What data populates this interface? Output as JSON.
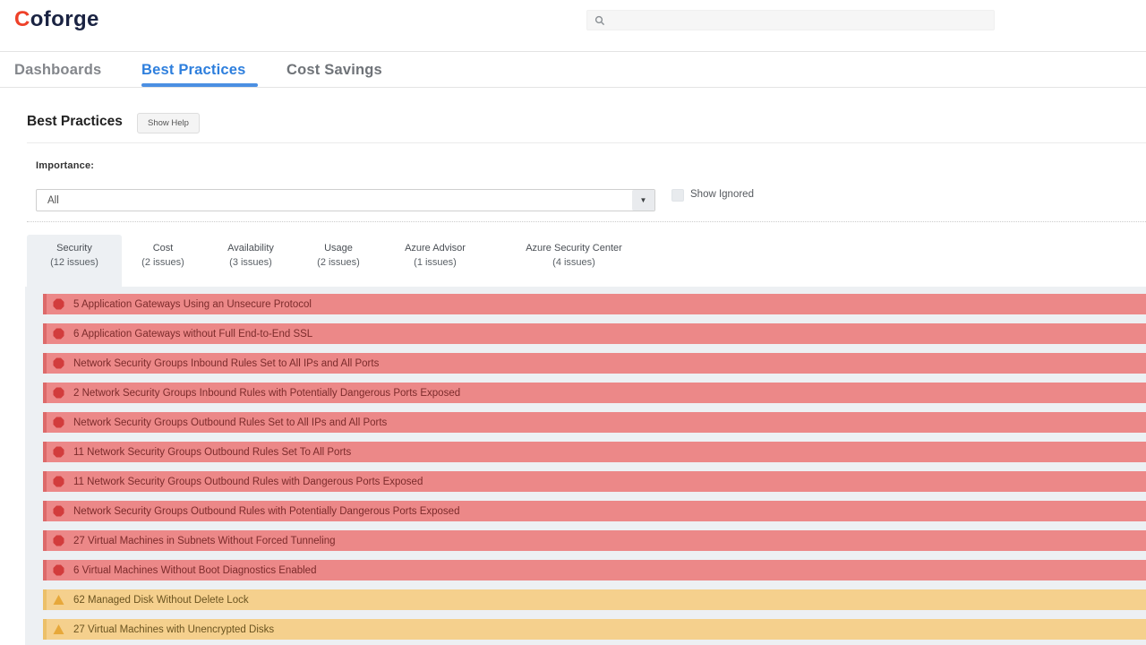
{
  "brand": {
    "logo_prefix": "C",
    "logo_rest": "oforge"
  },
  "nav": {
    "dashboards": "Dashboards",
    "best_practices": "Best Practices",
    "cost_savings": "Cost Savings"
  },
  "page": {
    "title": "Best Practices",
    "show_help": "Show Help",
    "importance_label": "Importance:",
    "importance_value": "All",
    "show_ignored": "Show Ignored"
  },
  "tabs": [
    {
      "label": "Security",
      "count": "(12 issues)",
      "active": true
    },
    {
      "label": "Cost",
      "count": "(2 issues)",
      "active": false
    },
    {
      "label": "Availability",
      "count": "(3 issues)",
      "active": false
    },
    {
      "label": "Usage",
      "count": "(2 issues)",
      "active": false
    },
    {
      "label": "Azure Advisor",
      "count": "(1 issues)",
      "active": false
    },
    {
      "label": "Azure Security Center",
      "count": "(4 issues)",
      "active": false
    }
  ],
  "issues": [
    {
      "severity": "critical",
      "text": "5 Application Gateways Using an Unsecure Protocol"
    },
    {
      "severity": "critical",
      "text": "6 Application Gateways without Full End-to-End SSL"
    },
    {
      "severity": "critical",
      "text": "Network Security Groups Inbound Rules Set to All IPs and All Ports"
    },
    {
      "severity": "critical",
      "text": "2 Network Security Groups Inbound Rules with Potentially Dangerous Ports Exposed"
    },
    {
      "severity": "critical",
      "text": "Network Security Groups Outbound Rules Set to All IPs and All Ports"
    },
    {
      "severity": "critical",
      "text": "11 Network Security Groups Outbound Rules Set To All Ports"
    },
    {
      "severity": "critical",
      "text": "11 Network Security Groups Outbound Rules with Dangerous Ports Exposed"
    },
    {
      "severity": "critical",
      "text": "Network Security Groups Outbound Rules with Potentially Dangerous Ports Exposed"
    },
    {
      "severity": "critical",
      "text": "27 Virtual Machines in Subnets Without Forced Tunneling"
    },
    {
      "severity": "critical",
      "text": "6 Virtual Machines Without Boot Diagnostics Enabled"
    },
    {
      "severity": "warning",
      "text": "62 Managed Disk Without Delete Lock"
    },
    {
      "severity": "warning",
      "text": "27 Virtual Machines with Unencrypted Disks"
    }
  ],
  "icons": {
    "search": "search-icon",
    "dropdown_arrow": "chevron-down-icon",
    "critical": "stop-octagon-icon",
    "warning": "warning-triangle-icon"
  },
  "colors": {
    "accent_blue": "#2e7fdd",
    "brand_red": "#ee4129",
    "brand_navy": "#1a2342",
    "critical_bg": "#ec8888",
    "critical_border": "#dd6a6a",
    "critical_icon": "#d23c3c",
    "critical_text": "#7c2b2b",
    "warning_bg": "#f5d08d",
    "warning_border": "#ecc069",
    "warning_icon": "#e7a83a",
    "warning_text": "#6b5420",
    "panel_bg": "#edf0f3"
  }
}
